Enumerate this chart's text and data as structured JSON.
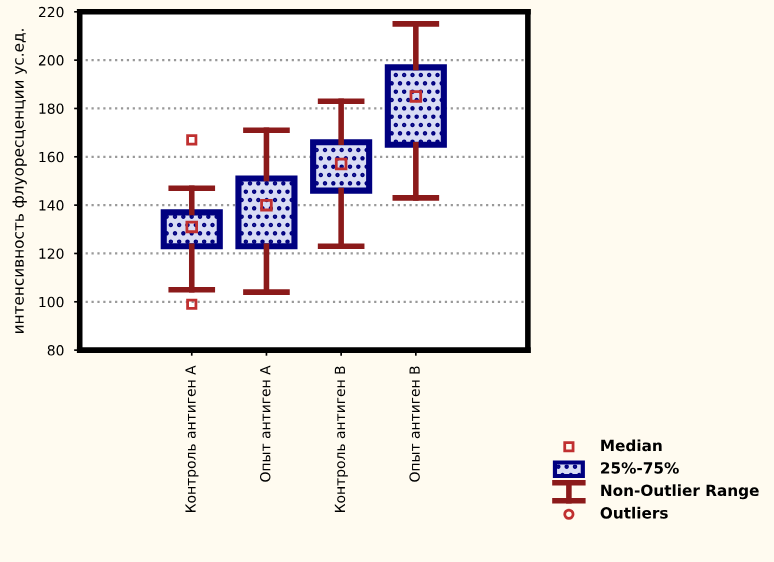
{
  "chart_data": {
    "type": "box",
    "ylabel": "интенсивность флуоресценции ус.ед.",
    "categories": [
      "Контроль антиген А",
      "Опыт антиген А",
      "Контроль антиген В",
      "Опыт антиген В"
    ],
    "series": [
      {
        "color": "#000080",
        "boxes": [
          {
            "low": 105,
            "q1": 123,
            "median": 131,
            "q3": 137,
            "high": 147,
            "outliers": [
              167,
              99
            ]
          },
          {
            "low": 104,
            "q1": 123,
            "median": 140,
            "q3": 151,
            "high": 171
          },
          {
            "low": 123,
            "q1": 146,
            "median": 157,
            "q3": 166,
            "high": 183
          },
          {
            "low": 143,
            "q1": 165,
            "median": 185,
            "q3": 197,
            "high": 215
          }
        ]
      }
    ],
    "ylim": [
      80,
      220
    ],
    "yticks": [
      80,
      100,
      120,
      140,
      160,
      180,
      200,
      220
    ],
    "grid": "y",
    "annotations": [
      "Median",
      "25%-75%",
      "Non-Outlier Range",
      "Outliers"
    ]
  }
}
